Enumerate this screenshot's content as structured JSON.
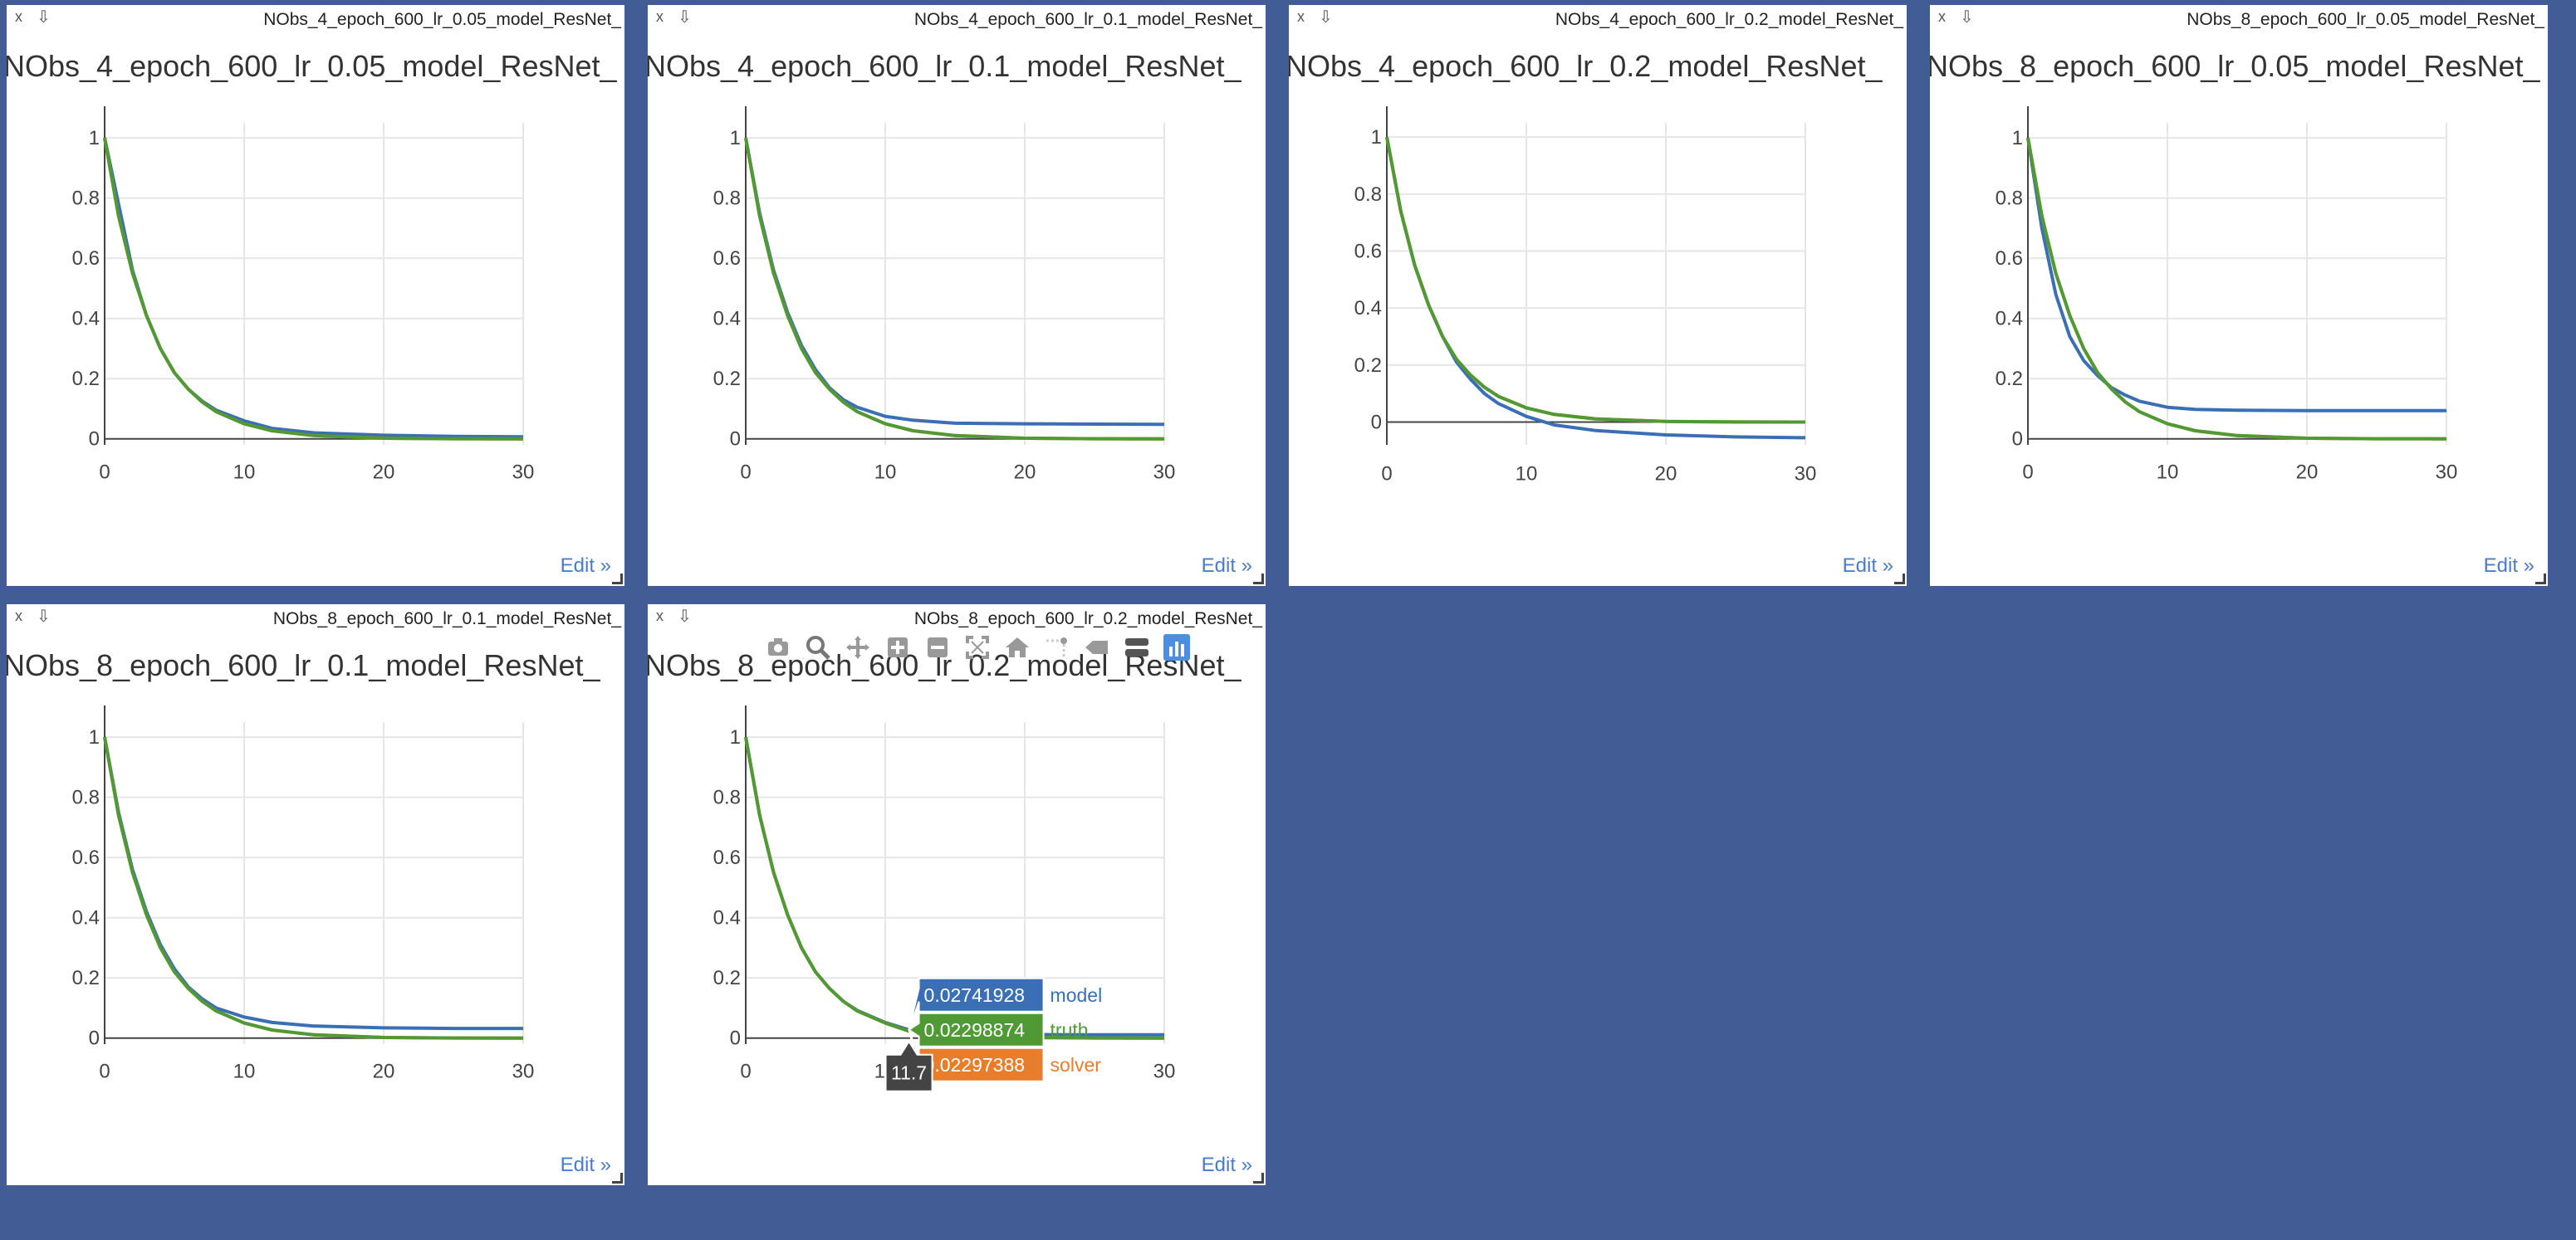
{
  "colors": {
    "background": "#425c96",
    "model": "#3a6fb5",
    "truth": "#4f9a34",
    "solver": "#e87d2b",
    "axis": "#444444",
    "grid": "#e6e6e6",
    "tick_text": "#444444"
  },
  "panel_controls": {
    "close": "x",
    "popout": "⇩",
    "edit": "Edit »"
  },
  "panels": [
    {
      "name": "NObs_4_epoch_600_lr_0.05_model_ResNet_",
      "title": "NObs_4_epoch_600_lr_0.05_model_ResNet_",
      "has_modebar": false,
      "has_hover": false
    },
    {
      "name": "NObs_4_epoch_600_lr_0.1_model_ResNet_",
      "title": "NObs_4_epoch_600_lr_0.1_model_ResNet_",
      "has_modebar": false,
      "has_hover": false
    },
    {
      "name": "NObs_4_epoch_600_lr_0.2_model_ResNet_",
      "title": "NObs_4_epoch_600_lr_0.2_model_ResNet_",
      "has_modebar": false,
      "has_hover": false
    },
    {
      "name": "NObs_8_epoch_600_lr_0.05_model_ResNet_",
      "title": "NObs_8_epoch_600_lr_0.05_model_ResNet_",
      "has_modebar": false,
      "has_hover": false
    },
    {
      "name": "NObs_8_epoch_600_lr_0.1_model_ResNet_",
      "title": "NObs_8_epoch_600_lr_0.1_model_ResNet_",
      "has_modebar": false,
      "has_hover": false
    },
    {
      "name": "NObs_8_epoch_600_lr_0.2_model_ResNet_",
      "title": "NObs_8_epoch_600_lr_0.2_model_ResNet_",
      "has_modebar": true,
      "has_hover": true
    }
  ],
  "modebar_icons": [
    "camera-icon",
    "zoom-icon",
    "pan-icon",
    "zoom-in-icon",
    "zoom-out-icon",
    "autoscale-icon",
    "home-icon",
    "spike-lines-icon",
    "hover-closest-icon",
    "hover-compare-icon",
    "plotly-logo-icon"
  ],
  "hover": {
    "x_label": "11.7",
    "entries": [
      {
        "value": "0.02741928",
        "name": "model",
        "color": "#3a6fb5"
      },
      {
        "value": "0.02298874",
        "name": "truth",
        "color": "#4f9a34"
      },
      {
        "value": "0.02297388",
        "name": "solver",
        "color": "#e87d2b"
      }
    ]
  },
  "chart_data": [
    {
      "type": "line",
      "title": "NObs_4_epoch_600_lr_0.05_model_ResNet_",
      "xlim": [
        0,
        30
      ],
      "ylim": [
        -0.02,
        1.05
      ],
      "xticks": [
        0,
        10,
        20,
        30
      ],
      "yticks": [
        0,
        0.2,
        0.4,
        0.6,
        0.8,
        1
      ],
      "x": [
        0,
        1,
        2,
        3,
        4,
        5,
        6,
        7,
        8,
        10,
        12,
        15,
        20,
        25,
        30
      ],
      "series": [
        {
          "name": "model",
          "values": [
            1.0,
            0.78,
            0.56,
            0.41,
            0.3,
            0.22,
            0.165,
            0.125,
            0.095,
            0.06,
            0.035,
            0.02,
            0.012,
            0.008,
            0.007
          ]
        },
        {
          "name": "solver",
          "values": [
            1.0,
            0.74,
            0.55,
            0.41,
            0.3,
            0.22,
            0.165,
            0.122,
            0.09,
            0.05,
            0.027,
            0.011,
            0.002,
            0.0005,
            0.0001
          ]
        },
        {
          "name": "truth",
          "values": [
            1.0,
            0.74,
            0.55,
            0.41,
            0.3,
            0.22,
            0.165,
            0.122,
            0.09,
            0.05,
            0.027,
            0.011,
            0.002,
            0.0005,
            0.0001
          ]
        }
      ]
    },
    {
      "type": "line",
      "title": "NObs_4_epoch_600_lr_0.1_model_ResNet_",
      "xlim": [
        0,
        30
      ],
      "ylim": [
        -0.02,
        1.05
      ],
      "xticks": [
        0,
        10,
        20,
        30
      ],
      "yticks": [
        0,
        0.2,
        0.4,
        0.6,
        0.8,
        1
      ],
      "x": [
        0,
        1,
        2,
        3,
        4,
        5,
        6,
        7,
        8,
        10,
        12,
        15,
        20,
        25,
        30
      ],
      "series": [
        {
          "name": "model",
          "values": [
            1.0,
            0.75,
            0.56,
            0.42,
            0.31,
            0.23,
            0.17,
            0.13,
            0.105,
            0.075,
            0.062,
            0.052,
            0.05,
            0.049,
            0.048
          ]
        },
        {
          "name": "solver",
          "values": [
            1.0,
            0.74,
            0.55,
            0.41,
            0.3,
            0.22,
            0.165,
            0.122,
            0.09,
            0.05,
            0.027,
            0.011,
            0.002,
            0.0005,
            0.0001
          ]
        },
        {
          "name": "truth",
          "values": [
            1.0,
            0.74,
            0.55,
            0.41,
            0.3,
            0.22,
            0.165,
            0.122,
            0.09,
            0.05,
            0.027,
            0.011,
            0.002,
            0.0005,
            0.0001
          ]
        }
      ]
    },
    {
      "type": "line",
      "title": "NObs_4_epoch_600_lr_0.2_model_ResNet_",
      "xlim": [
        0,
        30
      ],
      "ylim": [
        -0.08,
        1.05
      ],
      "xticks": [
        0,
        10,
        20,
        30
      ],
      "yticks": [
        0,
        0.2,
        0.4,
        0.6,
        0.8,
        1
      ],
      "x": [
        0,
        1,
        2,
        3,
        4,
        5,
        6,
        7,
        8,
        10,
        12,
        15,
        20,
        25,
        30
      ],
      "series": [
        {
          "name": "model",
          "values": [
            1.0,
            0.74,
            0.55,
            0.41,
            0.3,
            0.21,
            0.15,
            0.1,
            0.065,
            0.02,
            -0.01,
            -0.03,
            -0.045,
            -0.052,
            -0.055
          ]
        },
        {
          "name": "solver",
          "values": [
            1.0,
            0.74,
            0.55,
            0.41,
            0.3,
            0.22,
            0.165,
            0.122,
            0.09,
            0.05,
            0.027,
            0.011,
            0.002,
            0.0005,
            0.0001
          ]
        },
        {
          "name": "truth",
          "values": [
            1.0,
            0.74,
            0.55,
            0.41,
            0.3,
            0.22,
            0.165,
            0.122,
            0.09,
            0.05,
            0.027,
            0.011,
            0.002,
            0.0005,
            0.0001
          ]
        }
      ]
    },
    {
      "type": "line",
      "title": "NObs_8_epoch_600_lr_0.05_model_ResNet_",
      "xlim": [
        0,
        30
      ],
      "ylim": [
        -0.02,
        1.05
      ],
      "xticks": [
        0,
        10,
        20,
        30
      ],
      "yticks": [
        0,
        0.2,
        0.4,
        0.6,
        0.8,
        1
      ],
      "x": [
        0,
        1,
        2,
        3,
        4,
        5,
        6,
        7,
        8,
        10,
        12,
        15,
        20,
        25,
        30
      ],
      "series": [
        {
          "name": "model",
          "values": [
            1.0,
            0.7,
            0.48,
            0.34,
            0.26,
            0.21,
            0.17,
            0.145,
            0.125,
            0.105,
            0.098,
            0.095,
            0.094,
            0.094,
            0.094
          ]
        },
        {
          "name": "solver",
          "values": [
            1.0,
            0.74,
            0.55,
            0.41,
            0.3,
            0.22,
            0.165,
            0.122,
            0.09,
            0.05,
            0.027,
            0.011,
            0.002,
            0.0005,
            0.0001
          ]
        },
        {
          "name": "truth",
          "values": [
            1.0,
            0.74,
            0.55,
            0.41,
            0.3,
            0.22,
            0.165,
            0.122,
            0.09,
            0.05,
            0.027,
            0.011,
            0.002,
            0.0005,
            0.0001
          ]
        }
      ]
    },
    {
      "type": "line",
      "title": "NObs_8_epoch_600_lr_0.1_model_ResNet_",
      "xlim": [
        0,
        30
      ],
      "ylim": [
        -0.02,
        1.05
      ],
      "xticks": [
        0,
        10,
        20,
        30
      ],
      "yticks": [
        0,
        0.2,
        0.4,
        0.6,
        0.8,
        1
      ],
      "x": [
        0,
        1,
        2,
        3,
        4,
        5,
        6,
        7,
        8,
        10,
        12,
        15,
        20,
        25,
        30
      ],
      "series": [
        {
          "name": "model",
          "values": [
            1.0,
            0.75,
            0.56,
            0.42,
            0.31,
            0.23,
            0.17,
            0.13,
            0.1,
            0.07,
            0.052,
            0.04,
            0.034,
            0.032,
            0.032
          ]
        },
        {
          "name": "solver",
          "values": [
            1.0,
            0.74,
            0.55,
            0.41,
            0.3,
            0.22,
            0.165,
            0.122,
            0.09,
            0.05,
            0.027,
            0.011,
            0.002,
            0.0005,
            0.0001
          ]
        },
        {
          "name": "truth",
          "values": [
            1.0,
            0.74,
            0.55,
            0.41,
            0.3,
            0.22,
            0.165,
            0.122,
            0.09,
            0.05,
            0.027,
            0.011,
            0.002,
            0.0005,
            0.0001
          ]
        }
      ]
    },
    {
      "type": "line",
      "title": "NObs_8_epoch_600_lr_0.2_model_ResNet_",
      "xlim": [
        0,
        30
      ],
      "ylim": [
        -0.02,
        1.05
      ],
      "xticks": [
        0,
        10,
        20,
        30
      ],
      "yticks": [
        0,
        0.2,
        0.4,
        0.6,
        0.8,
        1
      ],
      "x": [
        0,
        1,
        2,
        3,
        4,
        5,
        6,
        7,
        8,
        10,
        11.7,
        12,
        15,
        20,
        25,
        30
      ],
      "series": [
        {
          "name": "model",
          "values": [
            1.0,
            0.74,
            0.55,
            0.41,
            0.3,
            0.22,
            0.165,
            0.122,
            0.092,
            0.052,
            0.0274,
            0.028,
            0.016,
            0.012,
            0.011,
            0.011
          ]
        },
        {
          "name": "solver",
          "values": [
            1.0,
            0.74,
            0.55,
            0.41,
            0.3,
            0.22,
            0.165,
            0.122,
            0.09,
            0.05,
            0.023,
            0.027,
            0.011,
            0.002,
            0.0005,
            0.0001
          ]
        },
        {
          "name": "truth",
          "values": [
            1.0,
            0.74,
            0.55,
            0.41,
            0.3,
            0.22,
            0.165,
            0.122,
            0.09,
            0.05,
            0.023,
            0.027,
            0.011,
            0.002,
            0.0005,
            0.0001
          ]
        }
      ]
    }
  ]
}
